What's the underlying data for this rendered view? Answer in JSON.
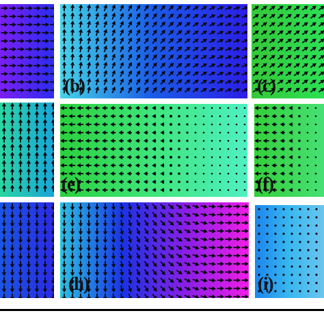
{
  "panels": [
    {
      "id": "a",
      "label": "",
      "gradient": [
        "#7a1ff2",
        "#2c2cf0"
      ],
      "pattern": "right"
    },
    {
      "id": "b",
      "label": "(b)",
      "gradient": [
        "#45d4e8",
        "#1a5ae6",
        "#2c1ee6"
      ],
      "pattern": "up-to-right"
    },
    {
      "id": "c",
      "label": "(c)",
      "gradient": [
        "#34c83a",
        "#2be053"
      ],
      "pattern": "diag-up"
    },
    {
      "id": "d",
      "label": "",
      "gradient": [
        "#2ad7a2",
        "#18a4d9"
      ],
      "pattern": "up"
    },
    {
      "id": "e",
      "label": "(e)",
      "gradient": [
        "#2bd03e",
        "#3fe57b",
        "#4ff0c2"
      ],
      "pattern": "left-fade"
    },
    {
      "id": "f",
      "label": "(f)",
      "gradient": [
        "#33cf3a",
        "#47e074"
      ],
      "pattern": "left-fade"
    },
    {
      "id": "g",
      "label": "",
      "gradient": [
        "#1a55e6",
        "#2b2ae6"
      ],
      "pattern": "down"
    },
    {
      "id": "h",
      "label": "(h)",
      "gradient": [
        "#2bc2e2",
        "#1a33e6",
        "#8a1ee6",
        "#f01ee6"
      ],
      "pattern": "down-to-right"
    },
    {
      "id": "i",
      "label": "(i)",
      "gradient": [
        "#1b86ee",
        "#3ab7ef",
        "#6ac5ee"
      ],
      "pattern": "dots"
    }
  ]
}
